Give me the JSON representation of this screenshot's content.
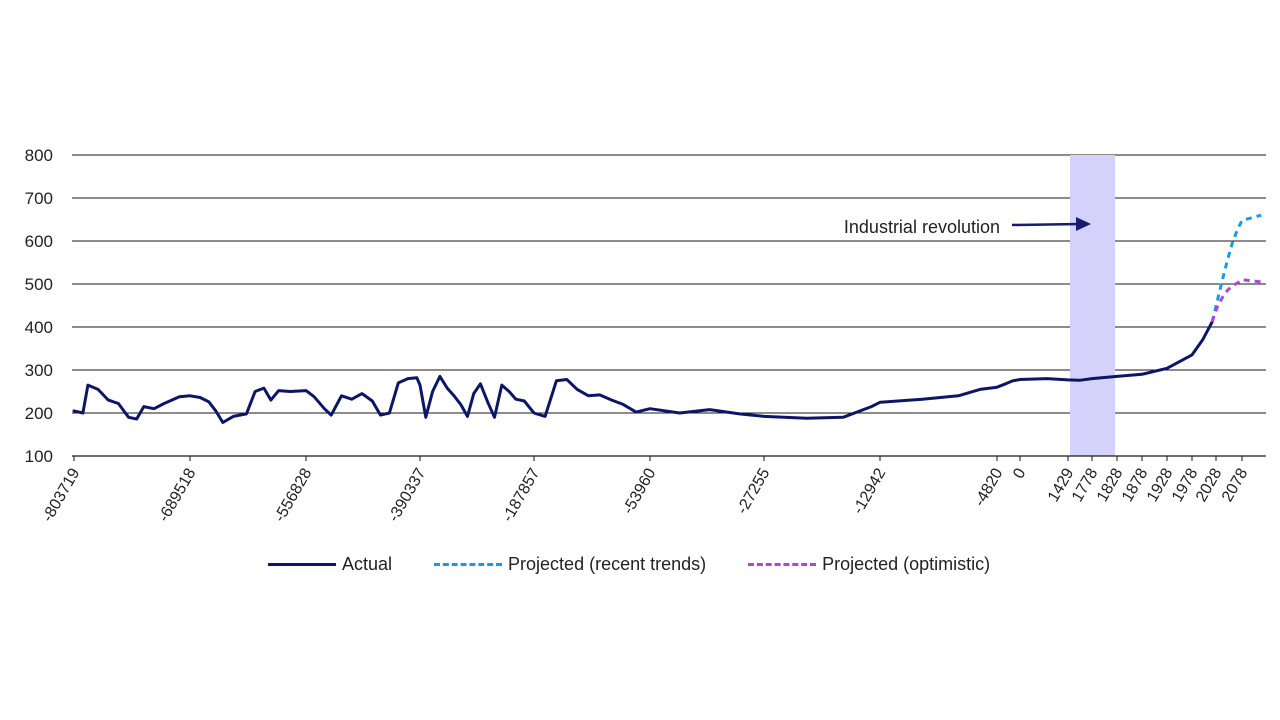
{
  "chart_data": {
    "type": "line",
    "title": "",
    "xlabel": "",
    "ylabel": "",
    "ylim": [
      100,
      800
    ],
    "yticks": [
      100,
      200,
      300,
      400,
      500,
      600,
      700,
      800
    ],
    "grid": true,
    "legend_placement": "bottom",
    "x_tick_labels": [
      "-803719",
      "-689518",
      "-556828",
      "-390337",
      "-187857",
      "-53960",
      "-27255",
      "-12942",
      "-4820",
      "0",
      "1429",
      "1778",
      "1828",
      "1878",
      "1928",
      "1978",
      "2028",
      "2078"
    ],
    "annotation": {
      "text": "Industrial revolution",
      "x_range_label": [
        "1778",
        "1828"
      ]
    },
    "series": [
      {
        "name": "Actual",
        "color": "#0d1666",
        "style": "solid",
        "points": [
          [
            "-803719",
            205
          ],
          [
            "-795000",
            200
          ],
          [
            "-790000",
            265
          ],
          [
            "-780000",
            255
          ],
          [
            "-770000",
            230
          ],
          [
            "-760000",
            222
          ],
          [
            "-750000",
            190
          ],
          [
            "-742000",
            186
          ],
          [
            "-735000",
            215
          ],
          [
            "-725000",
            210
          ],
          [
            "-715000",
            222
          ],
          [
            "-700000",
            238
          ],
          [
            "-689518",
            240
          ],
          [
            "-678000",
            236
          ],
          [
            "-668000",
            226
          ],
          [
            "-660000",
            205
          ],
          [
            "-652000",
            178
          ],
          [
            "-640000",
            192
          ],
          [
            "-625000",
            198
          ],
          [
            "-615000",
            250
          ],
          [
            "-605000",
            258
          ],
          [
            "-597000",
            230
          ],
          [
            "-588000",
            252
          ],
          [
            "-575000",
            250
          ],
          [
            "-556828",
            252
          ],
          [
            "-545000",
            238
          ],
          [
            "-530000",
            210
          ],
          [
            "-520000",
            195
          ],
          [
            "-505000",
            240
          ],
          [
            "-490000",
            232
          ],
          [
            "-475000",
            245
          ],
          [
            "-460000",
            228
          ],
          [
            "-448000",
            195
          ],
          [
            "-435000",
            200
          ],
          [
            "-422000",
            270
          ],
          [
            "-408000",
            280
          ],
          [
            "-395000",
            282
          ],
          [
            "-390337",
            265
          ],
          [
            "-380000",
            190
          ],
          [
            "-368000",
            250
          ],
          [
            "-355000",
            285
          ],
          [
            "-342000",
            258
          ],
          [
            "-330000",
            240
          ],
          [
            "-318000",
            220
          ],
          [
            "-306000",
            192
          ],
          [
            "-295000",
            245
          ],
          [
            "-283000",
            268
          ],
          [
            "-270000",
            225
          ],
          [
            "-258000",
            190
          ],
          [
            "-245000",
            265
          ],
          [
            "-232000",
            250
          ],
          [
            "-220000",
            232
          ],
          [
            "-205000",
            228
          ],
          [
            "-187857",
            200
          ],
          [
            "-175000",
            192
          ],
          [
            "-162000",
            275
          ],
          [
            "-150000",
            278
          ],
          [
            "-138000",
            255
          ],
          [
            "-125000",
            240
          ],
          [
            "-112000",
            242
          ],
          [
            "-98000",
            230
          ],
          [
            "-85000",
            220
          ],
          [
            "-70000",
            202
          ],
          [
            "-53960",
            210
          ],
          [
            "-47000",
            200
          ],
          [
            "-40000",
            208
          ],
          [
            "-33000",
            198
          ],
          [
            "-27255",
            192
          ],
          [
            "-22000",
            188
          ],
          [
            "-17500",
            190
          ],
          [
            "-14000",
            215
          ],
          [
            "-12942",
            225
          ],
          [
            "-10000",
            232
          ],
          [
            "-7500",
            240
          ],
          [
            "-6000",
            255
          ],
          [
            "-4820",
            260
          ],
          [
            "-3000",
            268
          ],
          [
            "-1500",
            275
          ],
          [
            "0",
            278
          ],
          [
            "800",
            280
          ],
          [
            "1429",
            277
          ],
          [
            "1600",
            276
          ],
          [
            "1778",
            280
          ],
          [
            "1828",
            285
          ],
          [
            "1878",
            290
          ],
          [
            "1928",
            304
          ],
          [
            "1978",
            335
          ],
          [
            "2000",
            370
          ],
          [
            "2020",
            412
          ]
        ]
      },
      {
        "name": "Projected (recent trends)",
        "color": "#1a9be0",
        "style": "dashed",
        "points": [
          [
            "2020",
            412
          ],
          [
            "2030",
            458
          ],
          [
            "2040",
            508
          ],
          [
            "2050",
            555
          ],
          [
            "2060",
            598
          ],
          [
            "2070",
            628
          ],
          [
            "2078",
            648
          ],
          [
            "2090",
            660
          ]
        ]
      },
      {
        "name": "Projected (optimistic)",
        "color": "#b044dc",
        "style": "dashed",
        "points": [
          [
            "2020",
            412
          ],
          [
            "2030",
            445
          ],
          [
            "2040",
            468
          ],
          [
            "2050",
            485
          ],
          [
            "2060",
            496
          ],
          [
            "2070",
            503
          ],
          [
            "2078",
            510
          ],
          [
            "2090",
            505
          ]
        ]
      }
    ]
  }
}
